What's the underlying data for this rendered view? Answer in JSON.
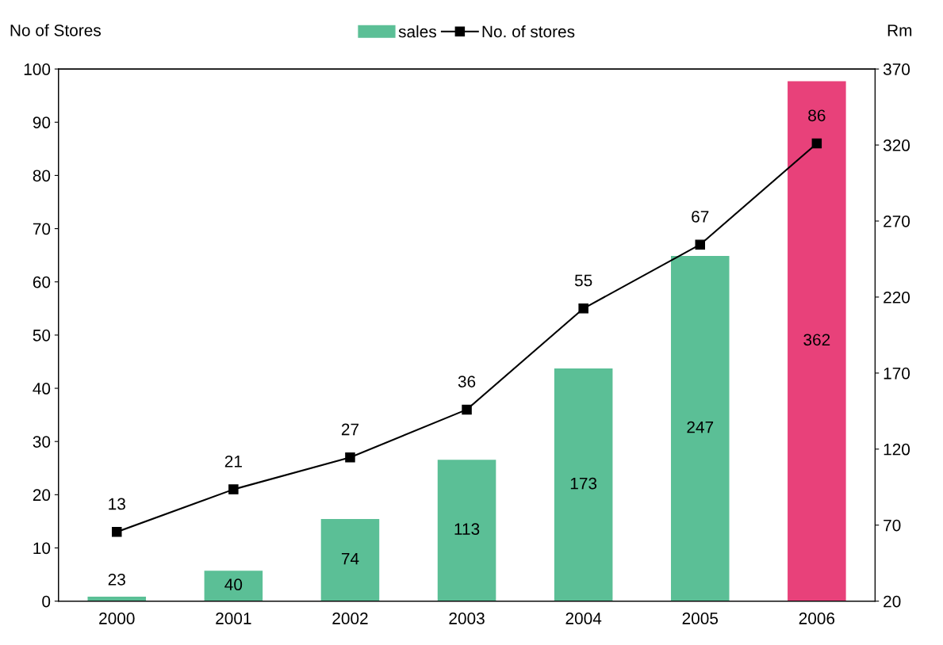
{
  "chart_data": {
    "type": "bar",
    "categories": [
      "2000",
      "2001",
      "2002",
      "2003",
      "2004",
      "2005",
      "2006"
    ],
    "series": [
      {
        "name": "sales",
        "axis": "y2",
        "color": "#5bbf96",
        "colors": [
          "#5bbf96",
          "#5bbf96",
          "#5bbf96",
          "#5bbf96",
          "#5bbf96",
          "#5bbf96",
          "#e8417a"
        ],
        "values": [
          23,
          40,
          74,
          113,
          173,
          247,
          362
        ]
      },
      {
        "name": "No. of stores",
        "type": "line",
        "color": "#000000",
        "marker": "square",
        "line_style": "solid",
        "values": [
          13,
          21,
          27,
          36,
          55,
          67,
          86
        ]
      }
    ],
    "ylabel": "No of Stores",
    "y2label": "Rm",
    "ylim": [
      0,
      100
    ],
    "yticks": [
      0,
      10,
      20,
      30,
      40,
      50,
      60,
      70,
      80,
      90,
      100
    ],
    "y2lim": [
      20,
      370
    ],
    "y2ticks": [
      20,
      70,
      120,
      170,
      220,
      270,
      320,
      370
    ],
    "data_labels": true,
    "legend": "top",
    "grid": false
  }
}
